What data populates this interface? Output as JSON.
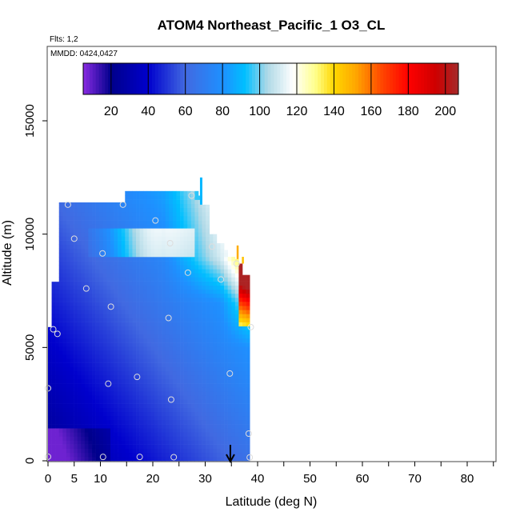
{
  "chart_data": {
    "type": "heatmap",
    "title": "ATOM4 Northeast_Pacific_1 O3_CL",
    "annotations": {
      "flights": "Flts: 1,2",
      "dates": "MMDD: 0424,0427"
    },
    "xlabel": "Latitude (deg N)",
    "ylabel": "Altitude (m)",
    "xlim": [
      0,
      85
    ],
    "ylim": [
      0,
      17500
    ],
    "x_ticks": [
      0,
      5,
      10,
      20,
      30,
      40,
      50,
      60,
      70,
      80
    ],
    "y_ticks": [
      0,
      5000,
      10000,
      15000
    ],
    "colorbar": {
      "range": [
        5,
        207
      ],
      "ticks": [
        20,
        40,
        60,
        80,
        100,
        120,
        140,
        160,
        180,
        200
      ],
      "placement": "top-inside"
    },
    "grid": false,
    "marker": {
      "latitude": 34.8,
      "altitude": 0,
      "symbol": "down-arrow"
    },
    "profile_points": [
      {
        "lat": 3.8,
        "alt": 11300
      },
      {
        "lat": 7.3,
        "alt": 7600
      },
      {
        "lat": 5.0,
        "alt": 9800
      },
      {
        "lat": 10.4,
        "alt": 9150
      },
      {
        "lat": 12.0,
        "alt": 6800
      },
      {
        "lat": 14.3,
        "alt": 11300
      },
      {
        "lat": 20.5,
        "alt": 10600
      },
      {
        "lat": 23.3,
        "alt": 9600
      },
      {
        "lat": 27.4,
        "alt": 11700
      },
      {
        "lat": 31.3,
        "alt": 9450
      },
      {
        "lat": 26.7,
        "alt": 8300
      },
      {
        "lat": 33.0,
        "alt": 8000
      },
      {
        "lat": 36.0,
        "alt": 8700
      },
      {
        "lat": 23.0,
        "alt": 6300
      },
      {
        "lat": 1.0,
        "alt": 5800
      },
      {
        "lat": 1.8,
        "alt": 5600
      },
      {
        "lat": 17.0,
        "alt": 3700
      },
      {
        "lat": 11.5,
        "alt": 3400
      },
      {
        "lat": 0.0,
        "alt": 3200
      },
      {
        "lat": 23.5,
        "alt": 2700
      },
      {
        "lat": 34.7,
        "alt": 3850
      },
      {
        "lat": 38.3,
        "alt": 1200
      },
      {
        "lat": 0.0,
        "alt": 180
      },
      {
        "lat": 10.5,
        "alt": 170
      },
      {
        "lat": 17.5,
        "alt": 170
      },
      {
        "lat": 24.0,
        "alt": 160
      },
      {
        "lat": 38.5,
        "alt": 150
      },
      {
        "lat": 38.7,
        "alt": 5900
      }
    ]
  }
}
